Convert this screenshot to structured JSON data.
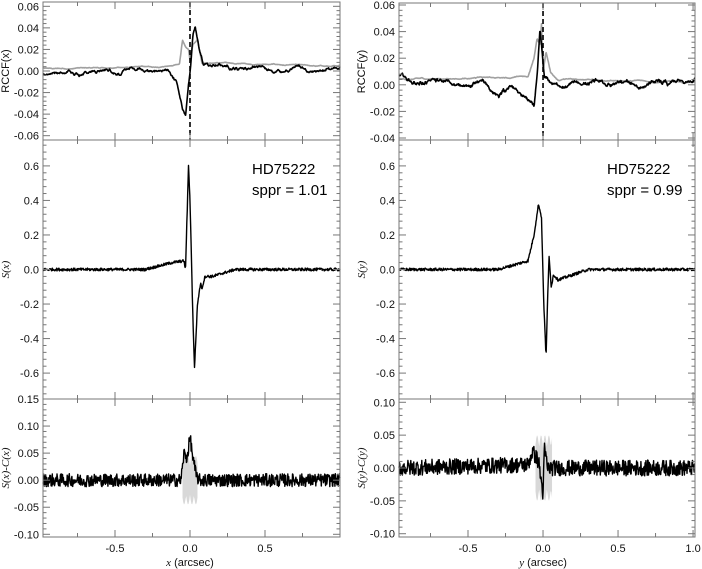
{
  "chart_data": [
    {
      "id": "rccf-x",
      "type": "line",
      "ylabel": "RCCF(x)",
      "xlim": [
        -0.98,
        1.0
      ],
      "ylim": [
        -0.064,
        0.064
      ],
      "yticks": [
        "0.06",
        "0.04",
        "0.02",
        "0.00",
        "-0.02",
        "-0.04",
        "-0.06"
      ],
      "ytick_values": [
        0.06,
        0.04,
        0.02,
        0,
        -0.02,
        -0.04,
        -0.06
      ],
      "vline_dashed_at": 0,
      "series": [
        {
          "name": "gray",
          "color": "#a0a0a0",
          "wiggle": 0.0015,
          "points": [
            [
              -0.98,
              0.002
            ],
            [
              -0.15,
              0.004
            ],
            [
              -0.07,
              0.006
            ],
            [
              -0.05,
              0.028
            ],
            [
              -0.03,
              0.022
            ],
            [
              -0.01,
              0.02
            ],
            [
              0.0,
              0.01
            ],
            [
              0.02,
              0.025
            ],
            [
              0.05,
              0.03
            ],
            [
              0.08,
              0.008
            ],
            [
              0.98,
              0.004
            ]
          ]
        },
        {
          "name": "black",
          "color": "#000000",
          "wiggle": 0.006,
          "points": [
            [
              -0.98,
              0
            ],
            [
              -0.15,
              0
            ],
            [
              -0.09,
              -0.01
            ],
            [
              -0.05,
              -0.035
            ],
            [
              -0.03,
              -0.042
            ],
            [
              -0.01,
              -0.01
            ],
            [
              0.0,
              0.0
            ],
            [
              0.02,
              0.035
            ],
            [
              0.035,
              0.044
            ],
            [
              0.06,
              0.02
            ],
            [
              0.09,
              0.005
            ],
            [
              1.0,
              0
            ]
          ]
        }
      ]
    },
    {
      "id": "rccf-y",
      "type": "line",
      "ylabel": "RCCF(y)",
      "xlim": [
        -0.96,
        1.013
      ],
      "ylim": [
        -0.0415,
        0.0615
      ],
      "yticks": [
        "0.06",
        "0.04",
        "0.02",
        "0.00",
        "-0.02",
        "-0.04"
      ],
      "ytick_values": [
        0.06,
        0.04,
        0.02,
        0,
        -0.02,
        -0.04
      ],
      "vline_dashed_at": 0,
      "series": [
        {
          "name": "gray",
          "color": "#a0a0a0",
          "wiggle": 0.0015,
          "points": [
            [
              -0.96,
              0.004
            ],
            [
              -0.1,
              0.006
            ],
            [
              -0.06,
              0.02
            ],
            [
              -0.04,
              0.035
            ],
            [
              -0.02,
              0.03
            ],
            [
              -0.01,
              0.046
            ],
            [
              0.0,
              0.01
            ],
            [
              0.02,
              0.025
            ],
            [
              0.05,
              0.01
            ],
            [
              0.1,
              0.004
            ],
            [
              1.013,
              0.002
            ]
          ]
        },
        {
          "name": "black",
          "color": "#000000",
          "wiggle": 0.007,
          "points": [
            [
              -0.96,
              0.003
            ],
            [
              -0.4,
              0
            ],
            [
              -0.3,
              -0.008
            ],
            [
              -0.2,
              -0.003
            ],
            [
              -0.12,
              -0.01
            ],
            [
              -0.06,
              -0.018
            ],
            [
              -0.035,
              0.01
            ],
            [
              -0.02,
              0.038
            ],
            [
              -0.005,
              0.02
            ],
            [
              0.01,
              0.0
            ],
            [
              0.05,
              0.0
            ],
            [
              1.013,
              0
            ]
          ]
        }
      ]
    },
    {
      "id": "s-x",
      "type": "line",
      "ylabel": "S(x)",
      "xlim": [
        -0.98,
        1.0
      ],
      "ylim": [
        -0.75,
        0.75
      ],
      "yticks": [
        "0.6",
        "0.4",
        "0.2",
        "0.0",
        "-0.2",
        "-0.4",
        "-0.6"
      ],
      "ytick_values": [
        0.6,
        0.4,
        0.2,
        0,
        -0.2,
        -0.4,
        -0.6
      ],
      "annotation": {
        "star": "HD75222",
        "sppr": "sppr = 1.01"
      },
      "series": [
        {
          "name": "S",
          "color": "#000000",
          "noise": 0.008,
          "points": [
            [
              -0.98,
              0
            ],
            [
              -0.3,
              0
            ],
            [
              -0.12,
              0.04
            ],
            [
              -0.04,
              0.05
            ],
            [
              -0.03,
              0.0
            ],
            [
              -0.01,
              0.6
            ],
            [
              0.0,
              0.4
            ],
            [
              0.02,
              -0.3
            ],
            [
              0.03,
              -0.57
            ],
            [
              0.05,
              -0.2
            ],
            [
              0.07,
              -0.08
            ],
            [
              0.08,
              -0.11
            ],
            [
              0.1,
              -0.04
            ],
            [
              0.15,
              -0.04
            ],
            [
              0.3,
              0
            ],
            [
              1.0,
              0
            ]
          ]
        }
      ]
    },
    {
      "id": "s-y",
      "type": "line",
      "ylabel": "S(y)",
      "xlim": [
        -0.96,
        1.013
      ],
      "ylim": [
        -0.75,
        0.75
      ],
      "yticks": [
        "0.6",
        "0.4",
        "0.2",
        "0.0",
        "-0.2",
        "-0.4",
        "-0.6"
      ],
      "ytick_values": [
        0.6,
        0.4,
        0.2,
        0,
        -0.2,
        -0.4,
        -0.6
      ],
      "annotation": {
        "star": "HD75222",
        "sppr": "sppr = 0.99"
      },
      "series": [
        {
          "name": "S",
          "color": "#000000",
          "noise": 0.008,
          "points": [
            [
              -0.96,
              0
            ],
            [
              -0.3,
              0
            ],
            [
              -0.1,
              0.05
            ],
            [
              -0.06,
              0.2
            ],
            [
              -0.03,
              0.38
            ],
            [
              -0.01,
              0.3
            ],
            [
              0.005,
              -0.2
            ],
            [
              0.02,
              -0.5
            ],
            [
              0.03,
              -0.2
            ],
            [
              0.04,
              0.08
            ],
            [
              0.055,
              -0.1
            ],
            [
              0.07,
              -0.03
            ],
            [
              0.1,
              -0.06
            ],
            [
              0.3,
              0
            ],
            [
              1.013,
              0
            ]
          ]
        }
      ]
    },
    {
      "id": "resid-x",
      "type": "line",
      "ylabel": "S(x)-C(x)",
      "xlabel": "x (arcsec)",
      "xlabel_var": "x",
      "xlabel_unit": " (arcsec)",
      "xlim": [
        -0.98,
        1.0
      ],
      "ylim": [
        -0.105,
        0.15
      ],
      "xticks": [
        "-0.5",
        "0.0",
        "0.5"
      ],
      "xtick_values": [
        -0.5,
        0,
        0.5
      ],
      "yticks": [
        "0.15",
        "0.10",
        "0.05",
        "0.00",
        "-0.05",
        "-0.10"
      ],
      "ytick_values": [
        0.15,
        0.1,
        0.05,
        0,
        -0.05,
        -0.1
      ],
      "band": {
        "x": [
          -0.05,
          0.05
        ],
        "half_width": 0.045,
        "color": "#d8d8d8"
      },
      "series": [
        {
          "name": "residual",
          "color": "#000000",
          "noise": 0.012,
          "points": [
            [
              -0.98,
              0
            ],
            [
              -0.06,
              0
            ],
            [
              -0.04,
              0.05
            ],
            [
              -0.02,
              0.04
            ],
            [
              0.0,
              0.08
            ],
            [
              0.02,
              0.04
            ],
            [
              0.04,
              0.01
            ],
            [
              0.06,
              0
            ],
            [
              1.0,
              0
            ]
          ]
        }
      ]
    },
    {
      "id": "resid-y",
      "type": "line",
      "ylabel": "S(y)-C(y)",
      "xlabel": "y (arcsec)",
      "xlabel_var": "y",
      "xlabel_unit": " (arcsec)",
      "xlim": [
        -0.96,
        1.013
      ],
      "ylim": [
        -0.105,
        0.105
      ],
      "xticks": [
        "-0.5",
        "0.0",
        "0.5",
        "1.0"
      ],
      "xtick_values": [
        -0.5,
        0,
        0.5,
        1.0
      ],
      "yticks": [
        "0.10",
        "0.05",
        "0.00",
        "-0.05",
        "-0.10"
      ],
      "ytick_values": [
        0.1,
        0.05,
        0,
        -0.05,
        -0.1
      ],
      "band": {
        "x": [
          -0.05,
          0.06
        ],
        "half_width": 0.05,
        "color": "#d8d8d8"
      },
      "series": [
        {
          "name": "residual",
          "color": "#000000",
          "noise": 0.012,
          "points": [
            [
              -0.96,
              0
            ],
            [
              -0.1,
              0.005
            ],
            [
              -0.07,
              0.025
            ],
            [
              -0.03,
              0.01
            ],
            [
              0.0,
              -0.04
            ],
            [
              0.01,
              0.03
            ],
            [
              0.03,
              0
            ],
            [
              1.013,
              0
            ]
          ]
        }
      ]
    }
  ]
}
